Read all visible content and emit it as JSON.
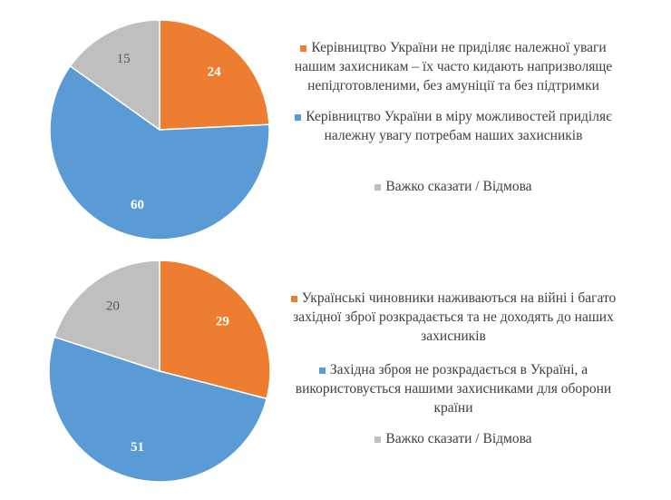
{
  "chart_data": [
    {
      "type": "pie",
      "categories": [
        "Керівництво України не приділяє належної уваги нашим захисникам – їх часто кидають напризволяще непідготовленими, без амуніції та без підтримки",
        "Керівництво України в міру можливостей приділяє належну увагу потребам наших захисників",
        "Важко сказати / Відмова"
      ],
      "values": [
        24,
        60,
        15
      ],
      "colors": [
        "#ED7D31",
        "#5B9BD5",
        "#BFBFBF"
      ]
    },
    {
      "type": "pie",
      "categories": [
        "Українські чиновники наживаються на війні і багато західної зброї розкрадається та не доходять до наших захисників",
        "Західна зброя не розкрадається в Україні, а використовується нашими захисниками для оборони країни",
        "Важко сказати / Відмова"
      ],
      "values": [
        29,
        51,
        20
      ],
      "colors": [
        "#ED7D31",
        "#5B9BD5",
        "#BFBFBF"
      ]
    }
  ]
}
